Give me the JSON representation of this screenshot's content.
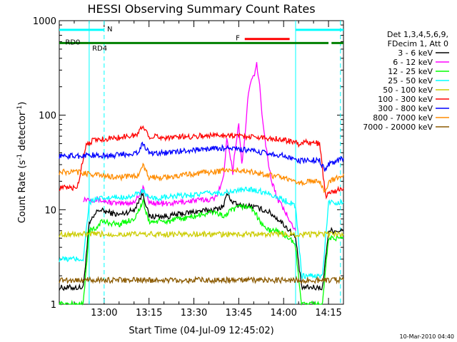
{
  "chart_data": {
    "type": "line",
    "title": "HESSI Observing Summary Count Rates",
    "xlabel": "Start Time (04-Jul-09 12:45:02)",
    "ylabel_main": "Count Rate (s",
    "ylabel_sup1": "-1",
    "ylabel_mid": " detector",
    "ylabel_sup2": "-1",
    "ylabel_end": ")",
    "yscale": "log",
    "ylim": [
      1,
      1000
    ],
    "xlim_minutes": [
      0,
      95
    ],
    "x_ticks": [
      {
        "minute": 15,
        "label": "13:00"
      },
      {
        "minute": 30,
        "label": "13:15"
      },
      {
        "minute": 45,
        "label": "13:30"
      },
      {
        "minute": 60,
        "label": "13:45"
      },
      {
        "minute": 75,
        "label": "14:00"
      },
      {
        "minute": 90,
        "label": "14:15"
      }
    ],
    "y_ticks": [
      {
        "value": 1,
        "label": "1"
      },
      {
        "value": 10,
        "label": "10"
      },
      {
        "value": 100,
        "label": "100"
      },
      {
        "value": 1000,
        "label": "1000"
      }
    ],
    "legend_header": [
      "Det 1,3,4,5,6,9,",
      "FDecim 1, Att 0"
    ],
    "series": [
      {
        "name": "3 - 6 keV",
        "color": "#000000",
        "points": [
          [
            0,
            1.5
          ],
          [
            8,
            1.5
          ],
          [
            10,
            7
          ],
          [
            13,
            10
          ],
          [
            20,
            8.8
          ],
          [
            25,
            10
          ],
          [
            28,
            15
          ],
          [
            30,
            8.5
          ],
          [
            36,
            8.5
          ],
          [
            45,
            9.5
          ],
          [
            52,
            10
          ],
          [
            55,
            11
          ],
          [
            56,
            15
          ],
          [
            58,
            12
          ],
          [
            60,
            11
          ],
          [
            64,
            11
          ],
          [
            66,
            10.5
          ],
          [
            68,
            10
          ],
          [
            70,
            9.5
          ],
          [
            73,
            8
          ],
          [
            75,
            7
          ],
          [
            77,
            6
          ],
          [
            79,
            5
          ],
          [
            81,
            1.5
          ],
          [
            88,
            1.5
          ],
          [
            90,
            6
          ],
          [
            95,
            6
          ]
        ]
      },
      {
        "name": "6 - 12 keV",
        "color": "#ff00ff",
        "points": [
          [
            8,
            13
          ],
          [
            10,
            13
          ],
          [
            14,
            12.5
          ],
          [
            20,
            11.5
          ],
          [
            25,
            12
          ],
          [
            28,
            17
          ],
          [
            30,
            12
          ],
          [
            36,
            11.5
          ],
          [
            45,
            12.5
          ],
          [
            52,
            13
          ],
          [
            55,
            22
          ],
          [
            56,
            60
          ],
          [
            57,
            40
          ],
          [
            58,
            25
          ],
          [
            59,
            50
          ],
          [
            60,
            80
          ],
          [
            61,
            30
          ],
          [
            62,
            55
          ],
          [
            63,
            150
          ],
          [
            64,
            220
          ],
          [
            65,
            260
          ],
          [
            66,
            340
          ],
          [
            67,
            200
          ],
          [
            68,
            90
          ],
          [
            69,
            50
          ],
          [
            70,
            30
          ],
          [
            71,
            20
          ],
          [
            72,
            16
          ],
          [
            73,
            13
          ],
          [
            75,
            10
          ],
          [
            77,
            8
          ],
          [
            79,
            6
          ]
        ]
      },
      {
        "name": "12 - 25 keV",
        "color": "#00ff00",
        "points": [
          [
            0,
            1
          ],
          [
            8,
            1
          ],
          [
            10,
            6
          ],
          [
            12,
            6.2
          ],
          [
            14,
            7.5
          ],
          [
            20,
            7
          ],
          [
            25,
            8
          ],
          [
            28,
            12
          ],
          [
            30,
            7.5
          ],
          [
            36,
            7.5
          ],
          [
            45,
            8.5
          ],
          [
            52,
            9.5
          ],
          [
            55,
            8.5
          ],
          [
            58,
            10
          ],
          [
            62,
            11
          ],
          [
            65,
            10
          ],
          [
            67,
            7.5
          ],
          [
            70,
            6
          ],
          [
            73,
            6
          ],
          [
            77,
            5
          ],
          [
            79,
            4
          ],
          [
            81,
            1
          ],
          [
            88,
            1
          ],
          [
            90,
            5
          ],
          [
            95,
            5
          ]
        ]
      },
      {
        "name": "25 - 50 keV",
        "color": "#00ffff",
        "points": [
          [
            0,
            3
          ],
          [
            8,
            3
          ],
          [
            10,
            12
          ],
          [
            13,
            13
          ],
          [
            20,
            13.5
          ],
          [
            25,
            14
          ],
          [
            28,
            16
          ],
          [
            30,
            13
          ],
          [
            36,
            13.5
          ],
          [
            45,
            14.5
          ],
          [
            52,
            15
          ],
          [
            55,
            15
          ],
          [
            60,
            16
          ],
          [
            64,
            16.5
          ],
          [
            66,
            16
          ],
          [
            68,
            15.5
          ],
          [
            70,
            15
          ],
          [
            72,
            14
          ],
          [
            74,
            13
          ],
          [
            77,
            12
          ],
          [
            79,
            11
          ],
          [
            81,
            2
          ],
          [
            88,
            2
          ],
          [
            90,
            12
          ],
          [
            95,
            12
          ]
        ]
      },
      {
        "name": "50 - 100 keV",
        "color": "#cccc00",
        "points": [
          [
            0,
            5.5
          ],
          [
            6,
            5.5
          ],
          [
            88,
            5.5
          ],
          [
            90,
            5.5
          ],
          [
            95,
            5.5
          ]
        ]
      },
      {
        "name": "100 - 300 keV",
        "color": "#ff0000",
        "points": [
          [
            0,
            17
          ],
          [
            6,
            17
          ],
          [
            9,
            50
          ],
          [
            12,
            55
          ],
          [
            20,
            58
          ],
          [
            26,
            62
          ],
          [
            28,
            78
          ],
          [
            30,
            60
          ],
          [
            36,
            58
          ],
          [
            45,
            60
          ],
          [
            55,
            62
          ],
          [
            62,
            60
          ],
          [
            68,
            58
          ],
          [
            74,
            56
          ],
          [
            78,
            52
          ],
          [
            80,
            50
          ],
          [
            83,
            52
          ],
          [
            87,
            50
          ],
          [
            89,
            14
          ],
          [
            90,
            15
          ],
          [
            93,
            16
          ],
          [
            95,
            17
          ]
        ]
      },
      {
        "name": "300 - 800 keV",
        "color": "#0000ff",
        "points": [
          [
            0,
            37
          ],
          [
            6,
            37
          ],
          [
            10,
            38
          ],
          [
            14,
            37
          ],
          [
            20,
            38
          ],
          [
            26,
            40
          ],
          [
            28,
            50
          ],
          [
            30,
            40
          ],
          [
            36,
            40
          ],
          [
            45,
            43
          ],
          [
            55,
            45
          ],
          [
            62,
            43
          ],
          [
            68,
            40
          ],
          [
            74,
            38
          ],
          [
            78,
            34
          ],
          [
            80,
            33
          ],
          [
            83,
            34
          ],
          [
            87,
            33
          ],
          [
            89,
            26
          ],
          [
            90,
            30
          ],
          [
            93,
            33
          ],
          [
            95,
            35
          ]
        ]
      },
      {
        "name": "800 - 7000 keV",
        "color": "#ff8c00",
        "points": [
          [
            0,
            25
          ],
          [
            6,
            25
          ],
          [
            10,
            24
          ],
          [
            14,
            23
          ],
          [
            20,
            22
          ],
          [
            26,
            23
          ],
          [
            28,
            29
          ],
          [
            30,
            22
          ],
          [
            36,
            22
          ],
          [
            45,
            24
          ],
          [
            55,
            26
          ],
          [
            62,
            26
          ],
          [
            68,
            24
          ],
          [
            74,
            22
          ],
          [
            78,
            20
          ],
          [
            80,
            19
          ],
          [
            83,
            20
          ],
          [
            87,
            20
          ],
          [
            89,
            15
          ],
          [
            90,
            20
          ],
          [
            93,
            22
          ],
          [
            95,
            24
          ]
        ]
      },
      {
        "name": "7000 - 20000 keV",
        "color": "#8b5a00",
        "points": [
          [
            0,
            1.8
          ],
          [
            8,
            1.8
          ],
          [
            88,
            1.8
          ],
          [
            90,
            1.8
          ],
          [
            95,
            1.8
          ]
        ]
      }
    ],
    "segments": [
      {
        "label": "N",
        "color": "#00ffff",
        "level": 800,
        "spans": [
          [
            0,
            15
          ],
          [
            79,
            95
          ]
        ],
        "label_minute": 16
      },
      {
        "label": "F",
        "color": "#ff0000",
        "level": 640,
        "spans": [
          [
            62,
            77
          ]
        ],
        "label_minute": 59
      },
      {
        "label": "RD0",
        "color": "#008000",
        "level": 580,
        "spans": [
          [
            0,
            10
          ],
          [
            10,
            90
          ],
          [
            91,
            95
          ]
        ],
        "label_minute": 2
      },
      {
        "label": "RD4",
        "color": "#008000",
        "level": 500,
        "spans": [],
        "label_minute": 11
      }
    ],
    "vlines": [
      {
        "minute": 10,
        "color": "#00ffff",
        "style": "solid"
      },
      {
        "minute": 15,
        "color": "#00ffff",
        "style": "dashed"
      },
      {
        "minute": 79,
        "color": "#00ffff",
        "style": "solid"
      },
      {
        "minute": 94,
        "color": "#00ffff",
        "style": "dashed"
      }
    ],
    "footer_stamp": "10-Mar-2010 04:40"
  }
}
